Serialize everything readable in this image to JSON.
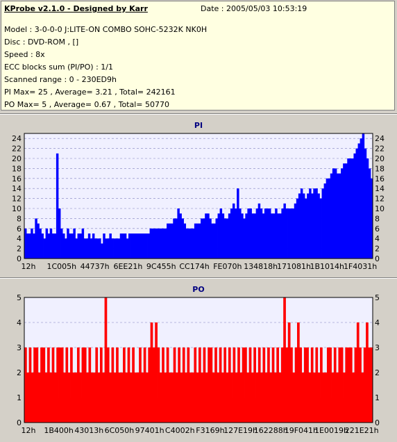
{
  "header": {
    "app_title": "KProbe v2.1.0 - Designed by Karr",
    "date": "Date : 2005/05/03 10:53:19"
  },
  "info": {
    "model": "Model : 3-0-0-0 J:LITE-ON COMBO SOHC-5232K NK0H",
    "disc": "Disc : DVD-ROM ,  []",
    "speed": "Speed : 8x",
    "ecc": "ECC blocks sum (PI/PO) : 1/1",
    "range": "Scanned range : 0 - 230ED9h",
    "pi_stats": "PI Max= 25 , Average= 3.21 , Total= 242161",
    "po_stats": "PO Max= 5 , Average= 0.67 , Total= 50770"
  },
  "colors": {
    "panel_bg": "#ffffe1",
    "plot_bg": "#f0f0ff",
    "pi_color": "#0000ff",
    "po_color": "#ff0000",
    "title_color": "#000080"
  },
  "chart_data": [
    {
      "type": "bar",
      "title": "PI",
      "ylim": [
        0,
        25
      ],
      "y_ticks": [
        0,
        2,
        4,
        6,
        8,
        10,
        12,
        14,
        16,
        18,
        20,
        22,
        24
      ],
      "x_tick_labels": [
        "12h",
        "1C005h",
        "44737h",
        "6EE21h",
        "9C455h",
        "CC174h",
        "FE070h",
        "134818h",
        "171081h",
        "1B1014h",
        "1F4031h"
      ],
      "grid": "horizontal dashed",
      "series": [
        {
          "color": "#0000ff",
          "values": [
            6,
            5,
            5,
            6,
            5,
            8,
            7,
            6,
            5,
            4,
            6,
            5,
            6,
            5,
            5,
            21,
            10,
            6,
            5,
            4,
            6,
            5,
            5,
            6,
            4,
            5,
            5,
            6,
            4,
            4,
            5,
            4,
            5,
            4,
            4,
            4,
            3,
            5,
            4,
            4,
            5,
            4,
            4,
            4,
            4,
            5,
            5,
            5,
            4,
            5,
            5,
            5,
            5,
            5,
            5,
            5,
            5,
            5,
            5,
            6,
            6,
            6,
            6,
            6,
            6,
            6,
            6,
            7,
            7,
            7,
            8,
            8,
            10,
            9,
            8,
            7,
            6,
            6,
            6,
            6,
            7,
            7,
            7,
            8,
            8,
            9,
            9,
            8,
            7,
            7,
            8,
            9,
            10,
            9,
            8,
            8,
            9,
            10,
            11,
            10,
            14,
            10,
            9,
            8,
            9,
            10,
            10,
            9,
            9,
            10,
            11,
            10,
            9,
            10,
            10,
            10,
            9,
            9,
            10,
            9,
            9,
            10,
            11,
            10,
            10,
            10,
            10,
            11,
            12,
            13,
            14,
            13,
            12,
            13,
            14,
            13,
            14,
            14,
            13,
            12,
            14,
            15,
            16,
            16,
            17,
            18,
            18,
            17,
            17,
            18,
            19,
            19,
            20,
            20,
            20,
            21,
            22,
            23,
            24,
            25,
            22,
            20,
            18,
            16
          ]
        }
      ]
    },
    {
      "type": "bar",
      "title": "PO",
      "ylim": [
        0,
        5
      ],
      "y_ticks": [
        0,
        1,
        2,
        3,
        4,
        5
      ],
      "x_tick_labels": [
        "12h",
        "1B400h",
        "43013h",
        "6C050h",
        "97401h",
        "C4002h",
        "F3169h",
        "127E19h",
        "162288h",
        "19F041h",
        "1E0019h",
        "221E21h"
      ],
      "grid": "horizontal dashed",
      "series": [
        {
          "color": "#ff0000",
          "values": [
            3,
            2,
            3,
            2,
            3,
            3,
            2,
            3,
            3,
            2,
            3,
            2,
            3,
            2,
            3,
            3,
            3,
            2,
            3,
            2,
            3,
            2,
            2,
            3,
            2,
            3,
            3,
            2,
            3,
            2,
            2,
            3,
            2,
            3,
            2,
            5,
            3,
            2,
            3,
            2,
            3,
            2,
            2,
            3,
            2,
            3,
            2,
            3,
            2,
            2,
            3,
            2,
            3,
            2,
            3,
            4,
            3,
            4,
            3,
            2,
            3,
            2,
            3,
            2,
            2,
            3,
            2,
            3,
            2,
            3,
            2,
            3,
            2,
            2,
            3,
            2,
            3,
            2,
            3,
            2,
            3,
            3,
            2,
            3,
            2,
            3,
            2,
            3,
            2,
            3,
            2,
            3,
            2,
            3,
            2,
            3,
            3,
            2,
            3,
            2,
            3,
            2,
            3,
            2,
            3,
            2,
            3,
            2,
            3,
            2,
            3,
            2,
            3,
            5,
            3,
            4,
            3,
            2,
            3,
            4,
            3,
            2,
            3,
            3,
            2,
            3,
            2,
            3,
            2,
            3,
            2,
            2,
            3,
            3,
            2,
            3,
            2,
            3,
            3,
            2,
            3,
            3,
            3,
            2,
            3,
            4,
            3,
            2,
            3,
            4,
            3,
            3
          ]
        }
      ]
    }
  ]
}
